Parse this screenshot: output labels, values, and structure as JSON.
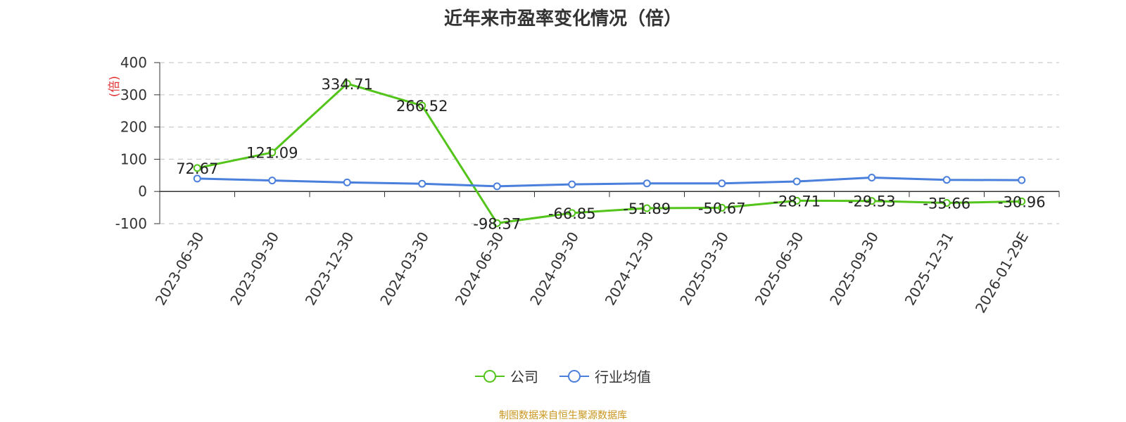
{
  "chart_data": {
    "type": "line",
    "title": "近年来市盈率变化情况（倍）",
    "ylabel": "(倍)",
    "ylim": [
      -100,
      400
    ],
    "yticks": [
      400,
      300,
      200,
      100,
      0,
      -100
    ],
    "grid": true,
    "legend_position": "bottom",
    "categories": [
      "2023-06-30",
      "2023-09-30",
      "2023-12-30",
      "2024-03-30",
      "2024-06-30",
      "2024-09-30",
      "2024-12-30",
      "2025-03-30",
      "2025-06-30",
      "2025-09-30",
      "2025-12-31",
      "2026-01-29E"
    ],
    "series": [
      {
        "name": "公司",
        "color": "#52c41a",
        "labels": true,
        "values": [
          72.67,
          121.09,
          334.71,
          266.52,
          -98.37,
          -66.85,
          -51.89,
          -50.67,
          -28.71,
          -29.53,
          -35.66,
          -30.96
        ]
      },
      {
        "name": "行业均值",
        "color": "#4a7fdc",
        "labels": false,
        "values": [
          40,
          34,
          28,
          24,
          16,
          22,
          25,
          25,
          31,
          43,
          36,
          35
        ]
      }
    ]
  },
  "source_note": "制图数据来自恒生聚源数据库"
}
